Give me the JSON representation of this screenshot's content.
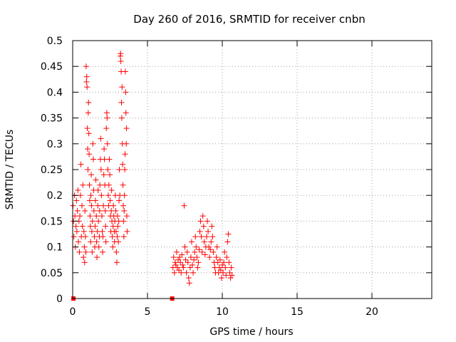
{
  "chart_data": {
    "type": "scatter",
    "title": "Day 260 of 2016, SRMTID for receiver cnbn",
    "xlabel": "GPS time / hours",
    "ylabel": "SRMTID / TECUs",
    "xlim": [
      0,
      24
    ],
    "ylim": [
      0,
      0.5
    ],
    "xticks": [
      0,
      5,
      10,
      15,
      20
    ],
    "yticks": [
      0,
      0.05,
      0.1,
      0.15,
      0.2,
      0.25,
      0.3,
      0.35,
      0.4,
      0.45,
      0.5
    ],
    "xtick_labels": [
      "0",
      "5",
      "10",
      "15",
      "20"
    ],
    "ytick_labels": [
      "0",
      "0.05",
      "0.1",
      "0.15",
      "0.2",
      "0.25",
      "0.3",
      "0.35",
      "0.4",
      "0.45",
      "0.5"
    ],
    "grid": true,
    "marker": "plus",
    "color": "#ff0000",
    "zero_markers": [
      0.05,
      6.65
    ],
    "series": [
      {
        "points": [
          [
            0.02,
            0.18
          ],
          [
            0.05,
            0.15
          ],
          [
            0.08,
            0.12
          ],
          [
            0.12,
            0.2
          ],
          [
            0.15,
            0.16
          ],
          [
            0.18,
            0.1
          ],
          [
            0.22,
            0.14
          ],
          [
            0.25,
            0.19
          ],
          [
            0.28,
            0.13
          ],
          [
            0.32,
            0.17
          ],
          [
            0.35,
            0.21
          ],
          [
            0.38,
            0.11
          ],
          [
            0.42,
            0.15
          ],
          [
            0.45,
            0.09
          ],
          [
            0.48,
            0.16
          ],
          [
            0.52,
            0.2
          ],
          [
            0.55,
            0.26
          ],
          [
            0.58,
            0.12
          ],
          [
            0.62,
            0.18
          ],
          [
            0.65,
            0.14
          ],
          [
            0.68,
            0.22
          ],
          [
            0.72,
            0.08
          ],
          [
            0.75,
            0.13
          ],
          [
            0.78,
            0.1
          ],
          [
            0.8,
            0.07
          ],
          [
            0.82,
            0.17
          ],
          [
            0.85,
            0.12
          ],
          [
            0.88,
            0.09
          ],
          [
            0.9,
            0.45
          ],
          [
            0.92,
            0.42
          ],
          [
            0.94,
            0.43
          ],
          [
            0.96,
            0.41
          ],
          [
            0.98,
            0.33
          ],
          [
            1.0,
            0.29
          ],
          [
            1.02,
            0.25
          ],
          [
            1.04,
            0.36
          ],
          [
            1.06,
            0.38
          ],
          [
            1.08,
            0.32
          ],
          [
            1.1,
            0.28
          ],
          [
            1.12,
            0.22
          ],
          [
            1.14,
            0.19
          ],
          [
            1.16,
            0.16
          ],
          [
            1.18,
            0.14
          ],
          [
            1.2,
            0.11
          ],
          [
            1.22,
            0.2
          ],
          [
            1.24,
            0.24
          ],
          [
            1.26,
            0.18
          ],
          [
            1.28,
            0.13
          ],
          [
            1.3,
            0.09
          ],
          [
            1.32,
            0.15
          ],
          [
            1.35,
            0.3
          ],
          [
            1.38,
            0.27
          ],
          [
            1.4,
            0.21
          ],
          [
            1.42,
            0.17
          ],
          [
            1.45,
            0.12
          ],
          [
            1.48,
            0.1
          ],
          [
            1.5,
            0.14
          ],
          [
            1.52,
            0.19
          ],
          [
            1.55,
            0.23
          ],
          [
            1.58,
            0.16
          ],
          [
            1.6,
            0.11
          ],
          [
            1.62,
            0.08
          ],
          [
            1.65,
            0.13
          ],
          [
            1.68,
            0.18
          ],
          [
            1.7,
            0.21
          ],
          [
            1.72,
            0.15
          ],
          [
            1.75,
            0.1
          ],
          [
            1.78,
            0.12
          ],
          [
            1.8,
            0.17
          ],
          [
            1.82,
            0.22
          ],
          [
            1.85,
            0.27
          ],
          [
            1.88,
            0.31
          ],
          [
            1.9,
            0.25
          ],
          [
            1.92,
            0.2
          ],
          [
            1.95,
            0.16
          ],
          [
            1.98,
            0.13
          ],
          [
            2.0,
            0.09
          ],
          [
            2.02,
            0.12
          ],
          [
            2.05,
            0.18
          ],
          [
            2.08,
            0.24
          ],
          [
            2.1,
            0.29
          ],
          [
            2.12,
            0.27
          ],
          [
            2.15,
            0.22
          ],
          [
            2.18,
            0.17
          ],
          [
            2.2,
            0.14
          ],
          [
            2.22,
            0.11
          ],
          [
            2.25,
            0.33
          ],
          [
            2.28,
            0.36
          ],
          [
            2.3,
            0.35
          ],
          [
            2.32,
            0.3
          ],
          [
            2.35,
            0.25
          ],
          [
            2.38,
            0.2
          ],
          [
            2.4,
            0.18
          ],
          [
            2.42,
            0.22
          ],
          [
            2.45,
            0.27
          ],
          [
            2.48,
            0.24
          ],
          [
            2.5,
            0.19
          ],
          [
            2.52,
            0.16
          ],
          [
            2.55,
            0.13
          ],
          [
            2.58,
            0.17
          ],
          [
            2.6,
            0.21
          ],
          [
            2.62,
            0.15
          ],
          [
            2.65,
            0.12
          ],
          [
            2.68,
            0.1
          ],
          [
            2.7,
            0.14
          ],
          [
            2.72,
            0.18
          ],
          [
            2.75,
            0.16
          ],
          [
            2.78,
            0.13
          ],
          [
            2.8,
            0.11
          ],
          [
            2.82,
            0.15
          ],
          [
            2.85,
            0.2
          ],
          [
            2.88,
            0.17
          ],
          [
            2.9,
            0.13
          ],
          [
            2.92,
            0.09
          ],
          [
            2.95,
            0.07
          ],
          [
            2.98,
            0.12
          ],
          [
            3.0,
            0.16
          ],
          [
            3.02,
            0.14
          ],
          [
            3.05,
            0.11
          ],
          [
            3.08,
            0.15
          ],
          [
            3.1,
            0.19
          ],
          [
            3.12,
            0.25
          ],
          [
            3.15,
            0.2
          ],
          [
            3.18,
            0.47
          ],
          [
            3.2,
            0.475
          ],
          [
            3.22,
            0.46
          ],
          [
            3.24,
            0.44
          ],
          [
            3.26,
            0.38
          ],
          [
            3.28,
            0.35
          ],
          [
            3.3,
            0.41
          ],
          [
            3.32,
            0.3
          ],
          [
            3.34,
            0.26
          ],
          [
            3.36,
            0.22
          ],
          [
            3.38,
            0.18
          ],
          [
            3.4,
            0.15
          ],
          [
            3.42,
            0.12
          ],
          [
            3.44,
            0.17
          ],
          [
            3.46,
            0.2
          ],
          [
            3.48,
            0.25
          ],
          [
            3.5,
            0.28
          ],
          [
            3.52,
            0.44
          ],
          [
            3.54,
            0.4
          ],
          [
            3.56,
            0.36
          ],
          [
            3.58,
            0.3
          ],
          [
            3.6,
            0.33
          ],
          [
            3.62,
            0.16
          ],
          [
            3.64,
            0.13
          ]
        ]
      },
      {
        "points": [
          [
            6.7,
            0.06
          ],
          [
            6.75,
            0.08
          ],
          [
            6.8,
            0.05
          ],
          [
            6.85,
            0.07
          ],
          [
            6.9,
            0.065
          ],
          [
            6.95,
            0.09
          ],
          [
            7.0,
            0.06
          ],
          [
            7.05,
            0.075
          ],
          [
            7.1,
            0.055
          ],
          [
            7.15,
            0.08
          ],
          [
            7.2,
            0.07
          ],
          [
            7.25,
            0.05
          ],
          [
            7.3,
            0.085
          ],
          [
            7.35,
            0.065
          ],
          [
            7.4,
            0.06
          ],
          [
            7.45,
            0.18
          ],
          [
            7.5,
            0.1
          ],
          [
            7.55,
            0.075
          ],
          [
            7.6,
            0.05
          ],
          [
            7.65,
            0.09
          ],
          [
            7.7,
            0.07
          ],
          [
            7.75,
            0.04
          ],
          [
            7.8,
            0.03
          ],
          [
            7.85,
            0.06
          ],
          [
            7.9,
            0.08
          ],
          [
            7.95,
            0.11
          ],
          [
            8.0,
            0.065
          ],
          [
            8.05,
            0.05
          ],
          [
            8.1,
            0.075
          ],
          [
            8.15,
            0.09
          ],
          [
            8.2,
            0.12
          ],
          [
            8.25,
            0.1
          ],
          [
            8.3,
            0.08
          ],
          [
            8.35,
            0.06
          ],
          [
            8.4,
            0.07
          ],
          [
            8.45,
            0.095
          ],
          [
            8.5,
            0.13
          ],
          [
            8.55,
            0.15
          ],
          [
            8.6,
            0.12
          ],
          [
            8.65,
            0.09
          ],
          [
            8.7,
            0.16
          ],
          [
            8.75,
            0.14
          ],
          [
            8.8,
            0.11
          ],
          [
            8.85,
            0.085
          ],
          [
            8.9,
            0.1
          ],
          [
            8.95,
            0.12
          ],
          [
            9.0,
            0.15
          ],
          [
            9.05,
            0.13
          ],
          [
            9.1,
            0.1
          ],
          [
            9.15,
            0.08
          ],
          [
            9.2,
            0.095
          ],
          [
            9.25,
            0.11
          ],
          [
            9.3,
            0.14
          ],
          [
            9.35,
            0.12
          ],
          [
            9.4,
            0.09
          ],
          [
            9.45,
            0.07
          ],
          [
            9.5,
            0.06
          ],
          [
            9.55,
            0.05
          ],
          [
            9.6,
            0.08
          ],
          [
            9.65,
            0.1
          ],
          [
            9.7,
            0.07
          ],
          [
            9.75,
            0.05
          ],
          [
            9.8,
            0.06
          ],
          [
            9.85,
            0.075
          ],
          [
            9.9,
            0.055
          ],
          [
            9.95,
            0.04
          ],
          [
            10.0,
            0.065
          ],
          [
            10.05,
            0.05
          ],
          [
            10.1,
            0.07
          ],
          [
            10.15,
            0.09
          ],
          [
            10.2,
            0.06
          ],
          [
            10.25,
            0.045
          ],
          [
            10.3,
            0.08
          ],
          [
            10.35,
            0.11
          ],
          [
            10.4,
            0.125
          ],
          [
            10.45,
            0.07
          ],
          [
            10.5,
            0.05
          ],
          [
            10.55,
            0.04
          ],
          [
            10.6,
            0.06
          ],
          [
            10.65,
            0.045
          ]
        ]
      }
    ]
  }
}
